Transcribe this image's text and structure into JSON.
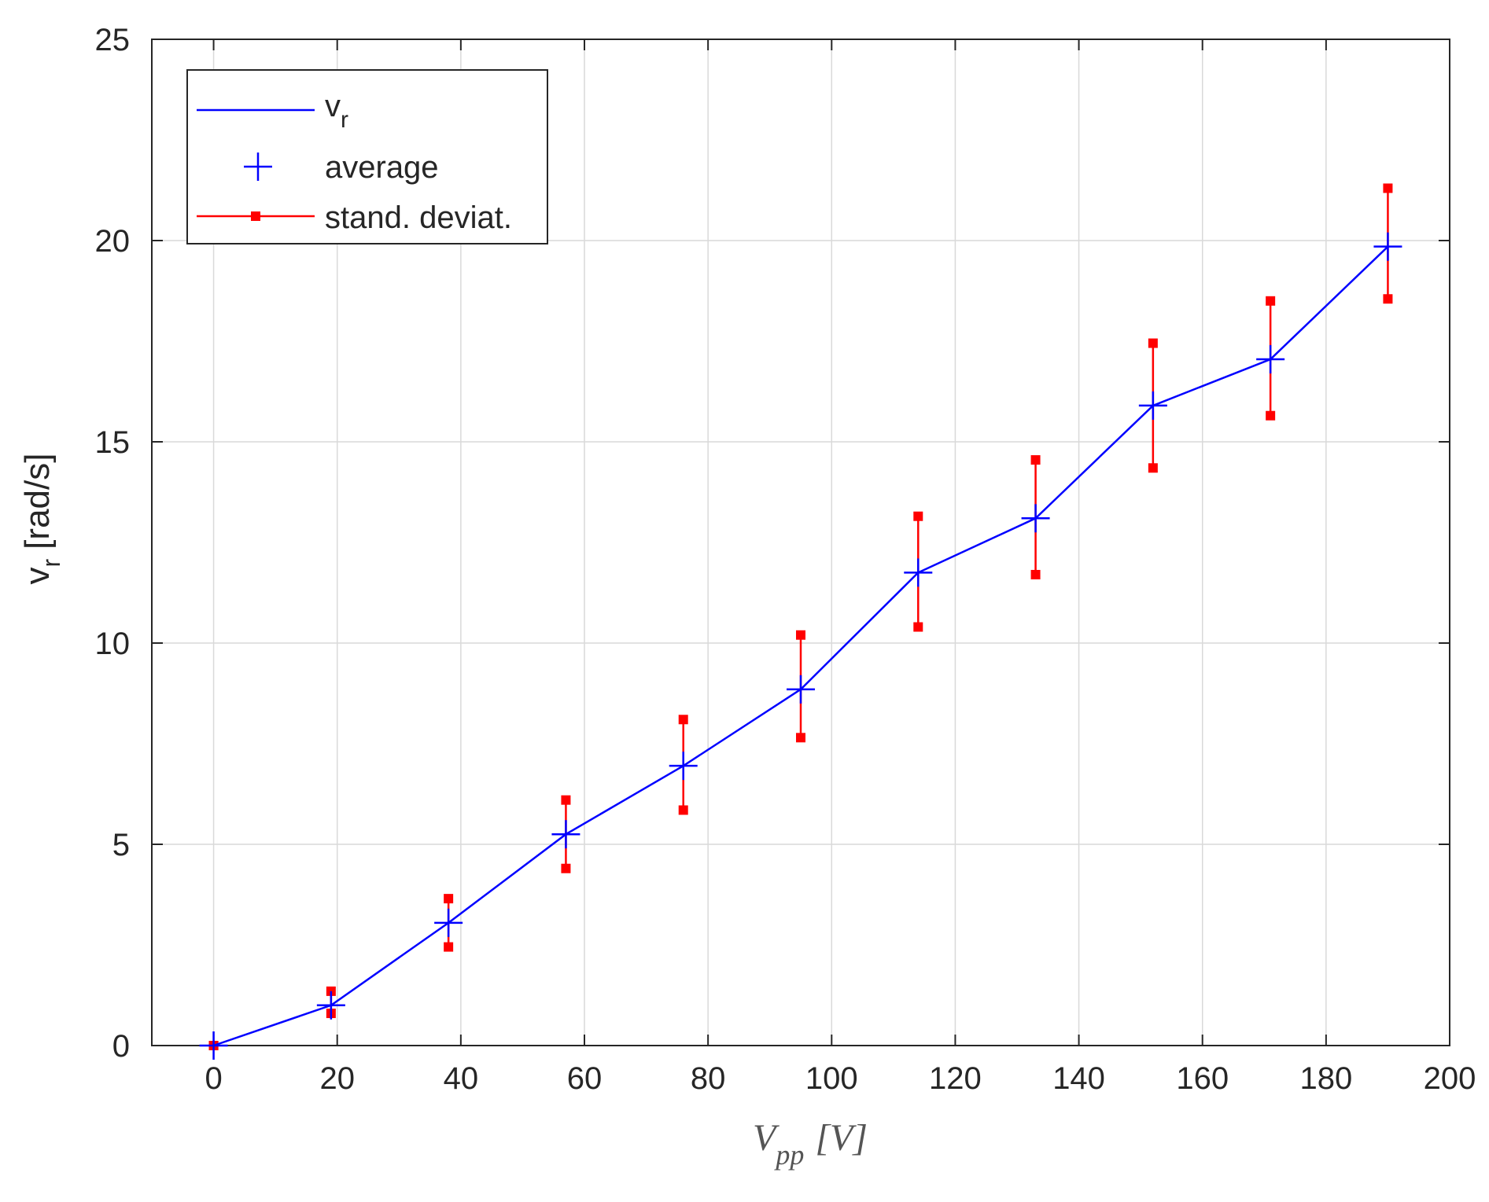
{
  "chart_data": {
    "type": "line",
    "title": "",
    "xlabel": {
      "main": "V",
      "sub": "pp",
      "unit": "[V]"
    },
    "ylabel": {
      "main": "v",
      "sub": "r",
      "unit": "[rad/s]"
    },
    "xlim": [
      -10,
      200
    ],
    "ylim": [
      0,
      25
    ],
    "xticks": [
      0,
      20,
      40,
      60,
      80,
      100,
      120,
      140,
      160,
      180,
      200
    ],
    "yticks": [
      0,
      5,
      10,
      15,
      20,
      25
    ],
    "grid": true,
    "legend_position": "top-left",
    "legend": [
      {
        "label": "v",
        "sub": "r",
        "style": "line"
      },
      {
        "label": "average",
        "sub": "",
        "style": "plus-marker"
      },
      {
        "label": "stand. deviat.",
        "sub": "",
        "style": "errorbar"
      }
    ],
    "colors": {
      "line": "#0000ff",
      "marker": "#0000ff",
      "errorbar": "#ff0000",
      "grid": "#d9d9d9",
      "axis": "#262626"
    },
    "series": [
      {
        "name": "average",
        "x": [
          0,
          19,
          38,
          57,
          76,
          95,
          114,
          133,
          152,
          171,
          190
        ],
        "y": [
          0,
          1.0,
          3.05,
          5.25,
          6.95,
          8.85,
          11.75,
          13.1,
          15.9,
          17.05,
          19.85
        ],
        "err_low": [
          0,
          0.8,
          2.45,
          4.4,
          5.85,
          7.65,
          10.4,
          11.7,
          14.35,
          15.65,
          18.55
        ],
        "err_high": [
          0,
          1.35,
          3.65,
          6.1,
          8.1,
          10.2,
          13.15,
          14.55,
          17.45,
          18.5,
          21.3
        ]
      }
    ]
  }
}
